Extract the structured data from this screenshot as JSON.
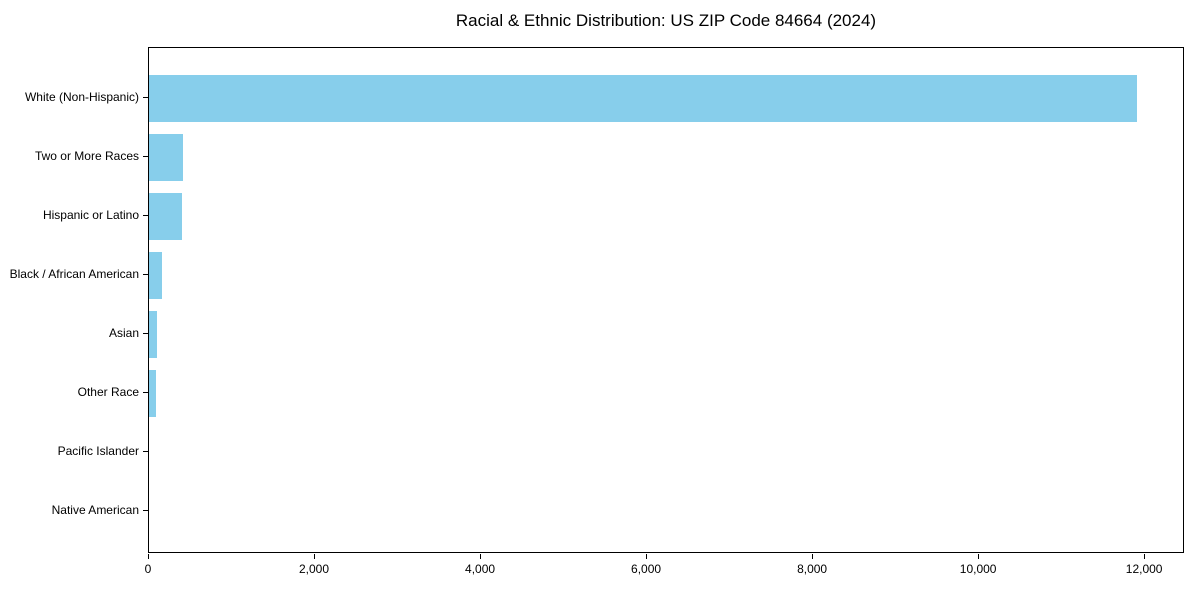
{
  "chart_data": {
    "type": "bar",
    "orientation": "horizontal",
    "title": "Racial & Ethnic Distribution: US ZIP Code 84664 (2024)",
    "categories": [
      "White (Non-Hispanic)",
      "Two or More Races",
      "Hispanic or Latino",
      "Black / African American",
      "Asian",
      "Other Race",
      "Pacific Islander",
      "Native American"
    ],
    "values": [
      11900,
      415,
      400,
      155,
      95,
      85,
      0,
      0
    ],
    "xlabel": "",
    "ylabel": "",
    "xlim": [
      0,
      12480
    ],
    "xticks": [
      0,
      2000,
      4000,
      6000,
      8000,
      10000,
      12000
    ],
    "xtick_labels": [
      "0",
      "2,000",
      "4,000",
      "6,000",
      "8,000",
      "10,000",
      "12,000"
    ],
    "bar_color": "#87CEEB",
    "axis_color": "#000000",
    "background_color": "#FFFFFF",
    "grid": false,
    "legend": false
  }
}
